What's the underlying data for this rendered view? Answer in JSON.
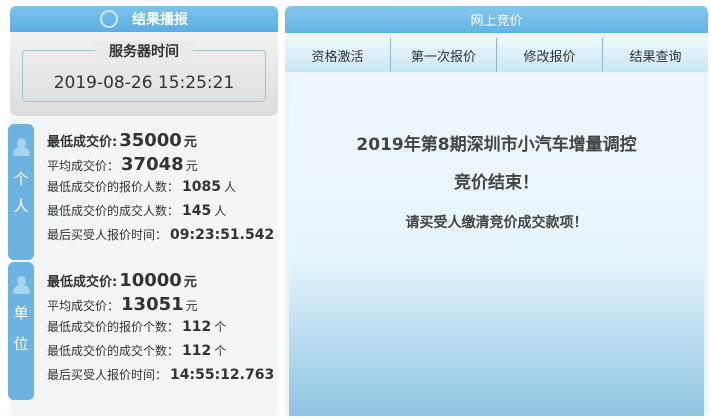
{
  "left": {
    "title": "结果播报",
    "server_time_label": "服务器时间",
    "server_time": "2019-08-26 15:25:21",
    "personal": {
      "tab": [
        "个",
        "人"
      ],
      "lowest_label": "最低成交价:",
      "lowest": "35000",
      "unit": "元",
      "avg_label": "平均成交价：",
      "avg": "37048",
      "bid_count_label": "最低成交价的报价人数：",
      "bid_count": "1085",
      "count_unit": "人",
      "deal_count_label": "最低成交价的成交人数：",
      "deal_count": "145",
      "last_time_label": "最后买受人报价时间：",
      "last_time": "09:23:51.542"
    },
    "company": {
      "tab": [
        "单",
        "位"
      ],
      "lowest_label": "最低成交价:",
      "lowest": "10000",
      "unit": "元",
      "avg_label": "平均成交价：",
      "avg": "13051",
      "bid_count_label": "最低成交价的报价个数：",
      "bid_count": "112",
      "count_unit": "个",
      "deal_count_label": "最低成交价的成交个数：",
      "deal_count": "112",
      "last_time_label": "最后买受人报价时间：",
      "last_time": "14:55:12.763"
    }
  },
  "right": {
    "title": "网上竞价",
    "tabs": [
      "资格激活",
      "第一次报价",
      "修改报价",
      "结果查询"
    ],
    "message_line1": "2019年第8期深圳市小汽车增量调控",
    "message_line2": "竞价结束！",
    "message_line3": "请买受人缴清竞价成交款项！"
  },
  "colors": {
    "accent": "#62b3e4",
    "tab_blue": "#6cb3e2"
  }
}
